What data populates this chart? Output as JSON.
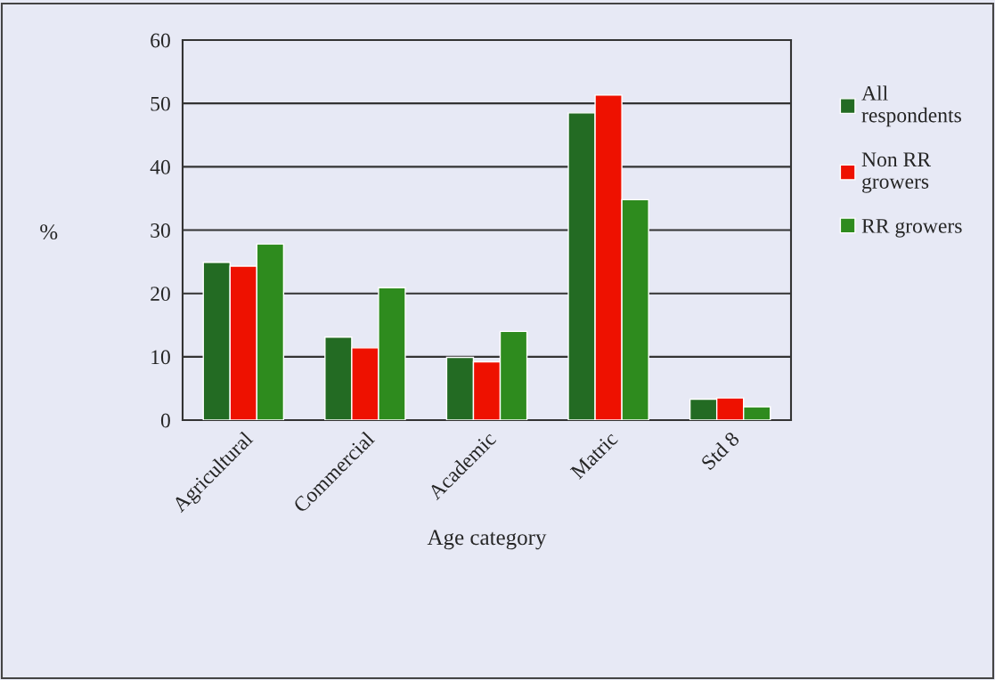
{
  "chart_data": {
    "type": "bar",
    "xlabel": "Age category",
    "ylabel": "%",
    "categories": [
      "Agricultural",
      "Commercial",
      "Academic",
      "Matric",
      "Std 8"
    ],
    "series": [
      {
        "name": "All respondents",
        "color": "#236b23",
        "values": [
          24.9,
          13.1,
          9.9,
          48.5,
          3.3
        ]
      },
      {
        "name": "Non RR growers",
        "color": "#ee1100",
        "values": [
          24.3,
          11.4,
          9.2,
          51.3,
          3.5
        ]
      },
      {
        "name": "RR growers",
        "color": "#2e8b1e",
        "values": [
          27.8,
          20.9,
          14,
          34.8,
          2.1
        ]
      }
    ],
    "ylim": [
      0,
      60
    ],
    "yticks": [
      0,
      10,
      20,
      30,
      40,
      50,
      60
    ],
    "grid": "y",
    "legend": "top right"
  }
}
